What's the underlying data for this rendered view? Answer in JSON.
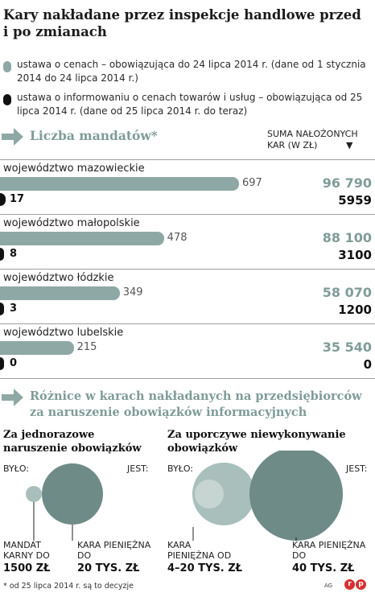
{
  "title": "Kary nakładane przez inspekcje handlowe przed i po zmianach",
  "legend": {
    "old": "ustawa o cenach – obowiązująca do 24 lipca 2014 r. (dane od 1 stycznia 2014 do 24 lipca 2014 r.)",
    "new": "ustawa o informowaniu o cenach towarów i usług – obowiązująca od 25 lipca 2014 r. (dane od 25 lipca 2014 r. do teraz)"
  },
  "colors": {
    "old": "#8ea8a5",
    "new": "#111111",
    "accent": "#7f9c98",
    "circle_dark": "#6f8b87",
    "circle_light": "#a9bfbb"
  },
  "section1": {
    "title": "Liczba mandatów*",
    "sum_header": "SUMA NAŁOŻONYCH KAR (W ZŁ)",
    "sum_marker": "▼"
  },
  "chart_data": {
    "type": "bar",
    "title": "Liczba mandatów*",
    "categories": [
      "województwo mazowieckie",
      "województwo małopolskie",
      "województwo łódzkie",
      "województwo lubelskie"
    ],
    "series": [
      {
        "name": "ustawa o cenach – obowiązująca do 24 lipca 2014 r.",
        "values": [
          697,
          478,
          349,
          215
        ]
      },
      {
        "name": "ustawa o informowaniu o cenach towarów i usług – obowiązująca od 25 lipca 2014 r.",
        "values": [
          17,
          8,
          3,
          0
        ]
      }
    ],
    "sums": {
      "old": [
        "96 790",
        "88 100",
        "58 070",
        "35 540"
      ],
      "new": [
        "5959",
        "3100",
        "1200",
        "0"
      ]
    },
    "xlim": [
      0,
      800
    ]
  },
  "section2": {
    "title": "Różnice w karach nakładanych na przedsiębiorców za naruszenie obowiązków informacyjnych",
    "left": {
      "title": "Za jednorazowe naruszenie obowiązków",
      "before": "BYŁO:",
      "after": "JEST:",
      "before_label": "MANDAT KARNY DO",
      "before_value": "1500 ZŁ",
      "after_label": "KARA PIENIĘŻNA DO",
      "after_value": "20 TYS. ZŁ"
    },
    "right": {
      "title": "Za uporczywe niewykonywanie obowiązków",
      "before": "BYŁO:",
      "after": "JEST:",
      "before_label": "KARA PIENIĘŻNA OD",
      "before_value": "4–20 TYS. ZŁ",
      "after_label": "KARA PIENIĘŻNA DO",
      "after_value": "40 TYS. ZŁ"
    }
  },
  "footnote": "* od 25 lipca 2014 r. są to decyzje",
  "credit": "AG",
  "logo": "rp"
}
